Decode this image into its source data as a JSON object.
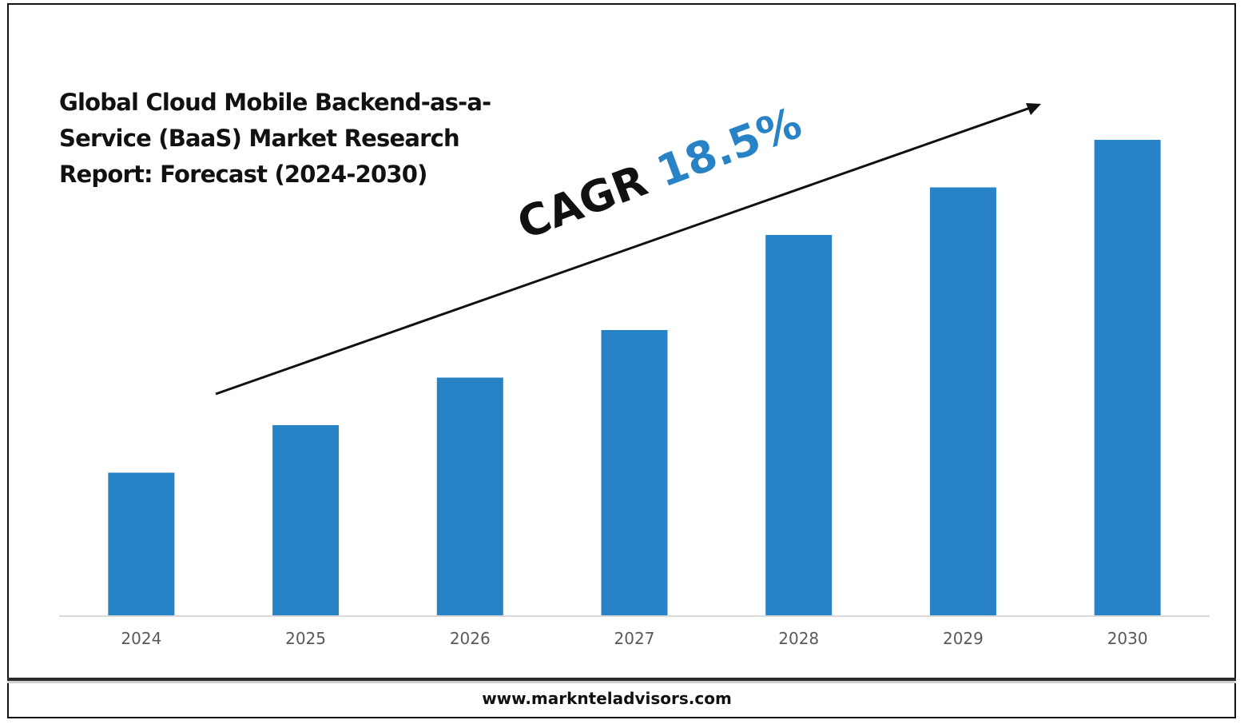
{
  "title": "Global Cloud Mobile Backend-as-a-Service (BaaS) Market Research Report: Forecast (2024-2030)",
  "annotation": {
    "label": "CAGR",
    "value": "18.5%"
  },
  "footer": {
    "url": "www.marknteladvisors.com"
  },
  "colors": {
    "bar": "#2883c6",
    "accent": "#2883c6",
    "text": "#111111",
    "axis_text": "#595959"
  },
  "chart_data": {
    "type": "bar",
    "title": "Global Cloud Mobile Backend-as-a-Service (BaaS) Market Research Report: Forecast (2024-2030)",
    "categories": [
      "2024",
      "2025",
      "2026",
      "2027",
      "2028",
      "2029",
      "2030"
    ],
    "values": [
      30,
      40,
      50,
      60,
      80,
      90,
      100
    ],
    "ylim": [
      0,
      100
    ],
    "xlabel": "",
    "ylabel": "",
    "grid": false,
    "legend": "none",
    "annotation": "CAGR 18.5%"
  }
}
